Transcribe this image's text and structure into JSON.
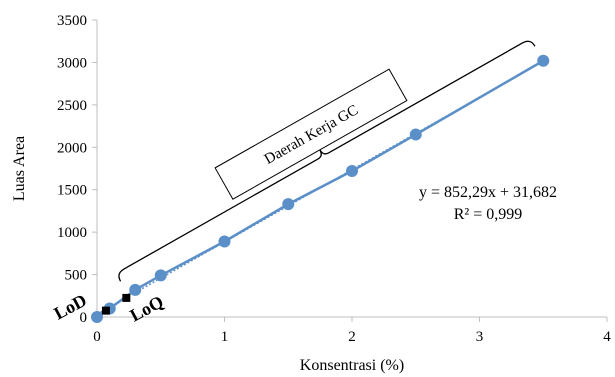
{
  "chart_data": {
    "type": "scatter",
    "xlabel": "Konsentrasi (%)",
    "ylabel": "Luas Area",
    "xlim": [
      0,
      4
    ],
    "ylim": [
      0,
      3500
    ],
    "x_ticks": [
      "0",
      "1",
      "2",
      "3",
      "4"
    ],
    "y_ticks": [
      "0",
      "500",
      "1000",
      "1500",
      "2000",
      "2500",
      "3000",
      "3500"
    ],
    "grid": false,
    "series": [
      {
        "color": "#5b8fc8",
        "points": [
          {
            "x": 0,
            "y": 0
          },
          {
            "x": 0.1,
            "y": 100
          },
          {
            "x": 0.3,
            "y": 320
          },
          {
            "x": 0.5,
            "y": 490
          },
          {
            "x": 1.0,
            "y": 890
          },
          {
            "x": 1.5,
            "y": 1330
          },
          {
            "x": 2.0,
            "y": 1720
          },
          {
            "x": 2.5,
            "y": 2150
          },
          {
            "x": 3.5,
            "y": 3020
          }
        ]
      }
    ],
    "trendline": {
      "slope": 852.29,
      "intercept": 31.682,
      "color": "#5b8fc8",
      "equation": "y = 852,29x + 31,682",
      "r2": "R² = 0,999"
    },
    "special_points": [
      {
        "label": "LoD",
        "x": 0.07,
        "y": 75,
        "color": "#000000"
      },
      {
        "label": "LoQ",
        "x": 0.23,
        "y": 225,
        "color": "#000000"
      }
    ],
    "bracket": {
      "label": "Daerah Kerja GC",
      "x_start": 0.15,
      "x_end": 3.4
    }
  }
}
